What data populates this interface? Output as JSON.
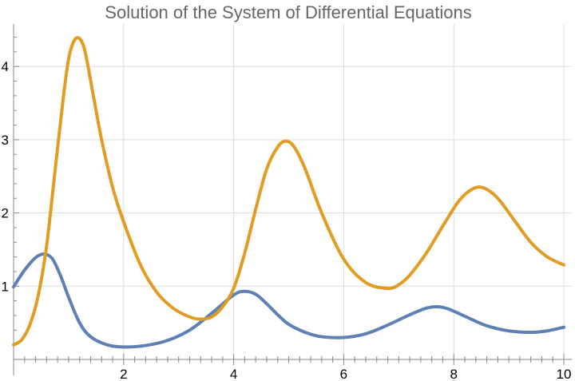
{
  "chart_data": {
    "type": "line",
    "title": "Solution of the System of Differential Equations",
    "xlabel": "",
    "ylabel": "",
    "xlim": [
      0,
      10
    ],
    "ylim": [
      0,
      4.6
    ],
    "xticks": [
      2,
      4,
      6,
      8,
      10
    ],
    "yticks": [
      1,
      2,
      3,
      4
    ],
    "grid": true,
    "legend": "none",
    "series": [
      {
        "color": "#5E81B5",
        "x": [
          0,
          0.2,
          0.4,
          0.55,
          0.7,
          0.85,
          1.0,
          1.2,
          1.4,
          1.7,
          2.0,
          2.4,
          2.8,
          3.2,
          3.6,
          4.0,
          4.2,
          4.4,
          4.6,
          4.8,
          5.0,
          5.3,
          5.6,
          6.0,
          6.4,
          6.8,
          7.2,
          7.5,
          7.7,
          7.9,
          8.2,
          8.6,
          9.0,
          9.4,
          9.7,
          10.0
        ],
        "y": [
          0.99,
          1.22,
          1.39,
          1.44,
          1.38,
          1.15,
          0.85,
          0.5,
          0.31,
          0.2,
          0.17,
          0.19,
          0.26,
          0.4,
          0.63,
          0.88,
          0.93,
          0.89,
          0.76,
          0.61,
          0.48,
          0.37,
          0.31,
          0.3,
          0.35,
          0.47,
          0.61,
          0.7,
          0.72,
          0.69,
          0.59,
          0.46,
          0.39,
          0.37,
          0.39,
          0.44
        ]
      },
      {
        "color": "#E19C24",
        "x": [
          0,
          0.15,
          0.3,
          0.45,
          0.6,
          0.75,
          0.9,
          1.0,
          1.1,
          1.2,
          1.3,
          1.45,
          1.6,
          1.8,
          2.0,
          2.3,
          2.6,
          2.9,
          3.2,
          3.4,
          3.6,
          3.8,
          4.0,
          4.2,
          4.4,
          4.6,
          4.8,
          4.95,
          5.1,
          5.3,
          5.6,
          6.0,
          6.4,
          6.8,
          7.0,
          7.2,
          7.5,
          7.8,
          8.1,
          8.35,
          8.55,
          8.8,
          9.1,
          9.4,
          9.7,
          10.0
        ],
        "y": [
          0.2,
          0.27,
          0.48,
          0.88,
          1.55,
          2.55,
          3.55,
          4.1,
          4.35,
          4.38,
          4.2,
          3.6,
          3.0,
          2.35,
          1.88,
          1.3,
          0.92,
          0.7,
          0.58,
          0.55,
          0.58,
          0.72,
          0.97,
          1.45,
          2.05,
          2.6,
          2.9,
          2.98,
          2.9,
          2.6,
          2.0,
          1.37,
          1.05,
          0.97,
          1.02,
          1.15,
          1.45,
          1.82,
          2.17,
          2.33,
          2.34,
          2.2,
          1.9,
          1.6,
          1.4,
          1.29
        ]
      }
    ]
  }
}
